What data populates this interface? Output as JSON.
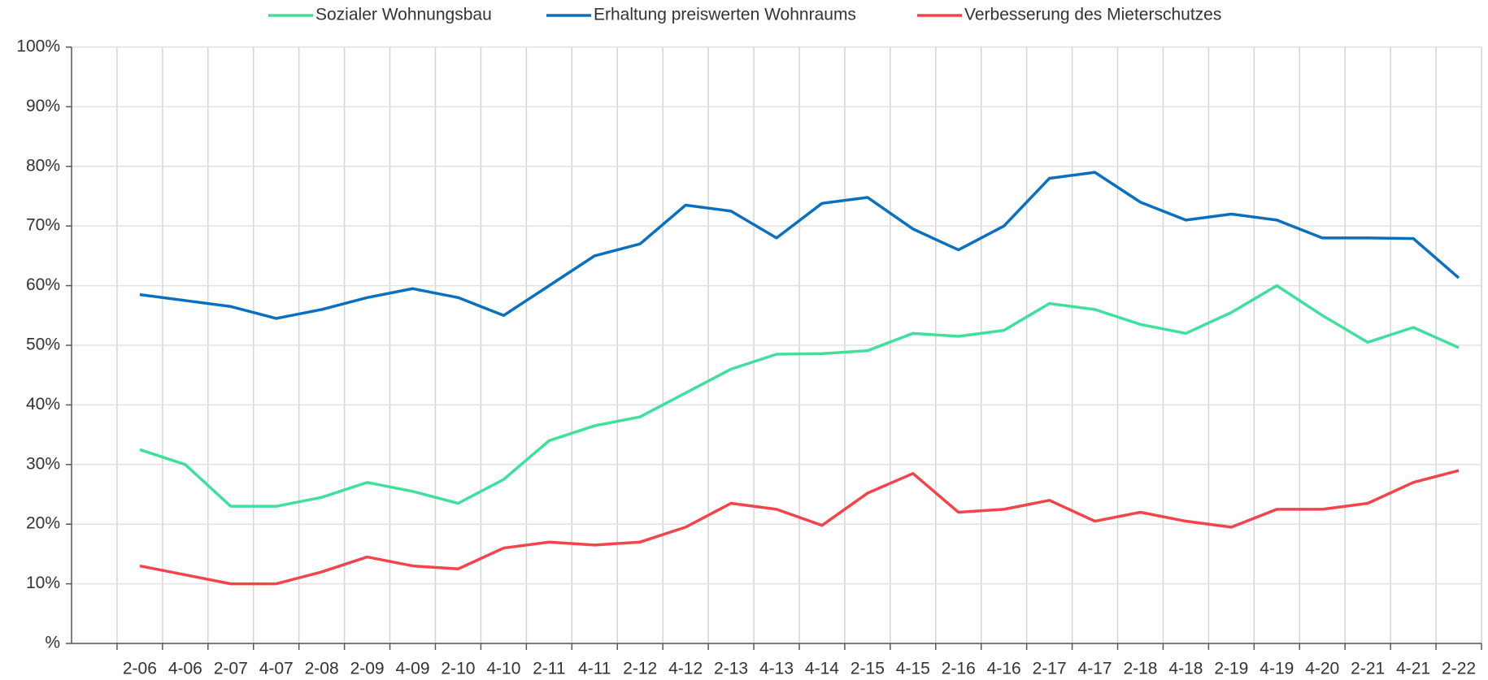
{
  "chart_data": {
    "type": "line",
    "categories": [
      null,
      "2-06",
      "4-06",
      "2-07",
      "4-07",
      "2-08",
      "2-09",
      "4-09",
      "2-10",
      "4-10",
      "2-11",
      "4-11",
      "2-12",
      "4-12",
      "2-13",
      "4-13",
      "4-14",
      "2-15",
      "4-15",
      "2-16",
      "4-16",
      "2-17",
      "4-17",
      "2-18",
      "4-18",
      "2-19",
      "4-19",
      "4-20",
      "2-21",
      "4-21",
      "2-22"
    ],
    "series": [
      {
        "name": "Sozialer Wohnungsbau",
        "color": "#40e09c",
        "values": [
          null,
          32.5,
          30,
          23,
          23,
          24.5,
          27,
          25.5,
          23.5,
          27.5,
          34,
          36.5,
          38,
          42,
          46,
          48.5,
          48.6,
          49.1,
          52,
          51.5,
          52.5,
          57,
          56,
          53.5,
          52,
          55.5,
          60,
          55,
          50.5,
          53,
          49.6
        ]
      },
      {
        "name": "Erhaltung preiswerten Wohnraums",
        "color": "#0a6fbf",
        "values": [
          null,
          58.5,
          57.5,
          56.5,
          54.5,
          56,
          58,
          59.5,
          58,
          55,
          60,
          65,
          67,
          73.5,
          72.5,
          68,
          73.8,
          74.8,
          69.5,
          66,
          70,
          78,
          79,
          74,
          71,
          72,
          71,
          68,
          68,
          67.9,
          61.3
        ]
      },
      {
        "name": "Verbesserung des Mieterschutzes",
        "color": "#f2444a",
        "values": [
          null,
          13,
          11.5,
          10,
          10,
          12,
          14.5,
          13,
          12.5,
          16,
          17,
          16.5,
          17,
          19.5,
          23.5,
          22.5,
          19.8,
          25.2,
          28.5,
          22,
          22.5,
          24,
          20.5,
          22,
          20.5,
          19.5,
          22.5,
          22.5,
          23.5,
          27,
          29
        ]
      }
    ],
    "ylim": [
      0,
      100
    ],
    "yticks": [
      {
        "value": 0,
        "label": "%"
      },
      {
        "value": 10,
        "label": "10%"
      },
      {
        "value": 20,
        "label": "20%"
      },
      {
        "value": 30,
        "label": "30%"
      },
      {
        "value": 40,
        "label": "40%"
      },
      {
        "value": 50,
        "label": "50%"
      },
      {
        "value": 60,
        "label": "60%"
      },
      {
        "value": 70,
        "label": "70%"
      },
      {
        "value": 80,
        "label": "80%"
      },
      {
        "value": 90,
        "label": "90%"
      },
      {
        "value": 100,
        "label": "100%"
      }
    ],
    "grid": true,
    "legend": "top"
  }
}
